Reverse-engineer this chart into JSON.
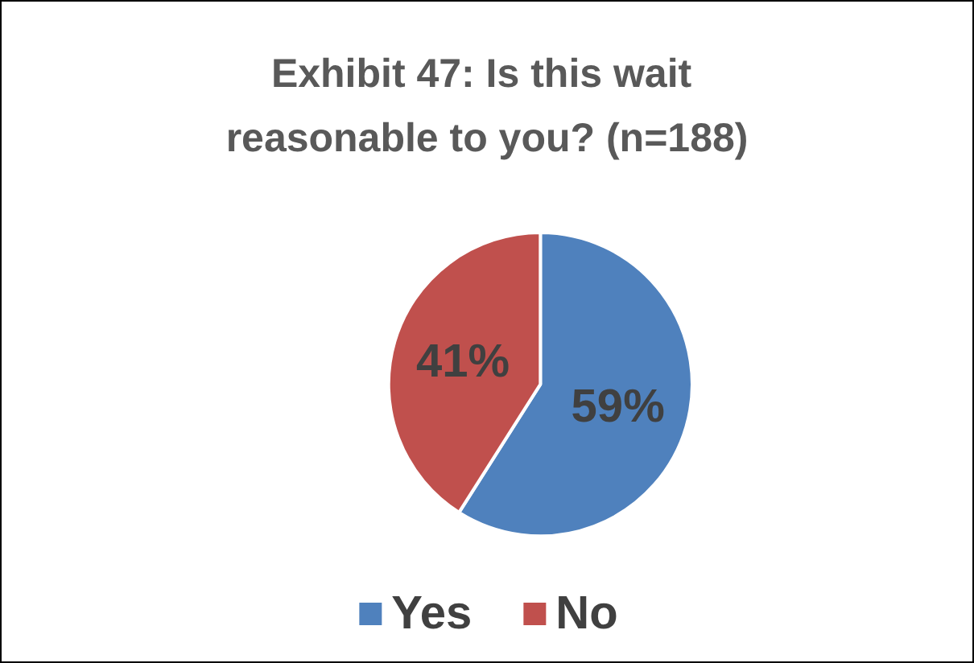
{
  "chart_data": {
    "type": "pie",
    "title": "Exhibit 47: Is this wait reasonable to you? (n=188)",
    "categories": [
      "Yes",
      "No"
    ],
    "values": [
      59,
      41
    ],
    "colors": [
      "#4f81bd",
      "#c0504d"
    ],
    "value_labels": [
      "59%",
      "41%"
    ],
    "legend": "bottom"
  }
}
